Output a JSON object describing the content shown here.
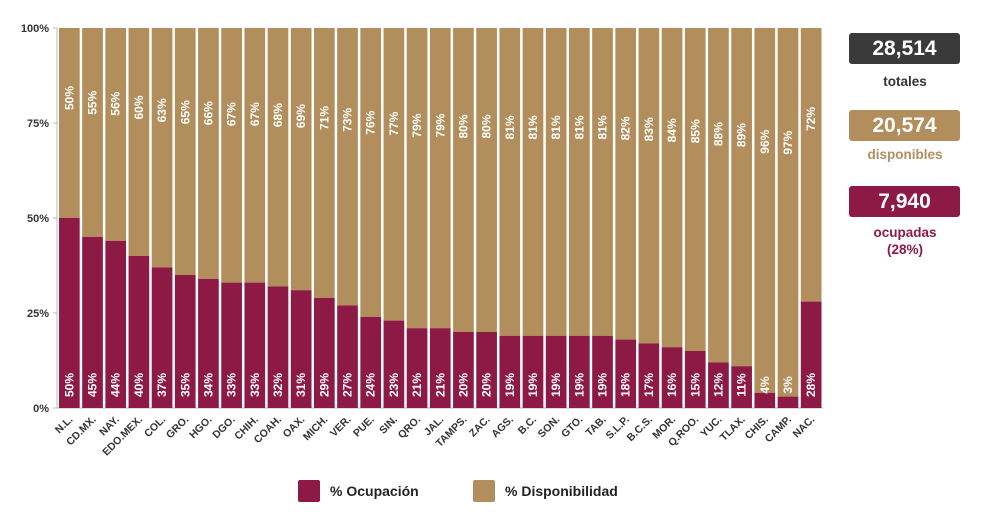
{
  "chart_data": {
    "type": "bar",
    "stacked": true,
    "categories": [
      "N.L.",
      "CD.MX.",
      "NAY.",
      "EDO.MEX.",
      "COL.",
      "GRO.",
      "HGO.",
      "DGO.",
      "CHIH.",
      "COAH.",
      "OAX.",
      "MICH.",
      "VER.",
      "PUE.",
      "SIN.",
      "QRO.",
      "JAL.",
      "TAMPS.",
      "ZAC.",
      "AGS.",
      "B.C.",
      "SON.",
      "GTO.",
      "TAB.",
      "S.L.P.",
      "B.C.S.",
      "MOR.",
      "Q.ROO.",
      "YUC.",
      "TLAX.",
      "CHIS.",
      "CAMP.",
      "NAC."
    ],
    "series": [
      {
        "name": "% Ocupación",
        "color": "#8c1a45",
        "values": [
          50,
          45,
          44,
          40,
          37,
          35,
          34,
          33,
          33,
          32,
          31,
          29,
          27,
          24,
          23,
          21,
          21,
          20,
          20,
          19,
          19,
          19,
          19,
          19,
          18,
          17,
          16,
          15,
          12,
          11,
          4,
          3,
          28
        ],
        "labels": [
          "50%",
          "45%",
          "44%",
          "40%",
          "37%",
          "35%",
          "34%",
          "33%",
          "33%",
          "32%",
          "31%",
          "29%",
          "27%",
          "24%",
          "23%",
          "21%",
          "21%",
          "20%",
          "20%",
          "19%",
          "19%",
          "19%",
          "19%",
          "19%",
          "18%",
          "17%",
          "16%",
          "15%",
          "12%",
          "11%",
          "4%",
          "3%",
          "28%"
        ]
      },
      {
        "name": "% Disponibilidad",
        "color": "#b38e5d",
        "values": [
          50,
          55,
          56,
          60,
          63,
          65,
          66,
          67,
          67,
          68,
          69,
          71,
          73,
          76,
          77,
          79,
          79,
          80,
          80,
          81,
          81,
          81,
          81,
          81,
          82,
          83,
          84,
          85,
          88,
          89,
          96,
          97,
          72
        ],
        "labels": [
          "50%",
          "55%",
          "56%",
          "60%",
          "63%",
          "65%",
          "66%",
          "67%",
          "67%",
          "68%",
          "69%",
          "71%",
          "73%",
          "76%",
          "77%",
          "79%",
          "79%",
          "80%",
          "80%",
          "81%",
          "81%",
          "81%",
          "81%",
          "81%",
          "82%",
          "83%",
          "84%",
          "85%",
          "88%",
          "89%",
          "96%",
          "97%",
          "72%"
        ]
      }
    ],
    "ylim": [
      0,
      100
    ],
    "yticks": [
      0,
      25,
      50,
      75,
      100
    ],
    "ytick_labels": [
      "0%",
      "25%",
      "50%",
      "75%",
      "100%"
    ],
    "legend_position": "bottom"
  },
  "stats": {
    "total": {
      "value": "28,514",
      "label": "totales",
      "color": "#3a3a3a"
    },
    "available": {
      "value": "20,574",
      "label": "disponibles",
      "color": "#b38e5d"
    },
    "occupied": {
      "value": "7,940",
      "label": "ocupadas",
      "sublabel": "(28%)",
      "color": "#8c1a45"
    }
  },
  "legend": {
    "items": [
      {
        "label": "% Ocupación",
        "color": "#8c1a45"
      },
      {
        "label": "% Disponibilidad",
        "color": "#b38e5d"
      }
    ]
  }
}
